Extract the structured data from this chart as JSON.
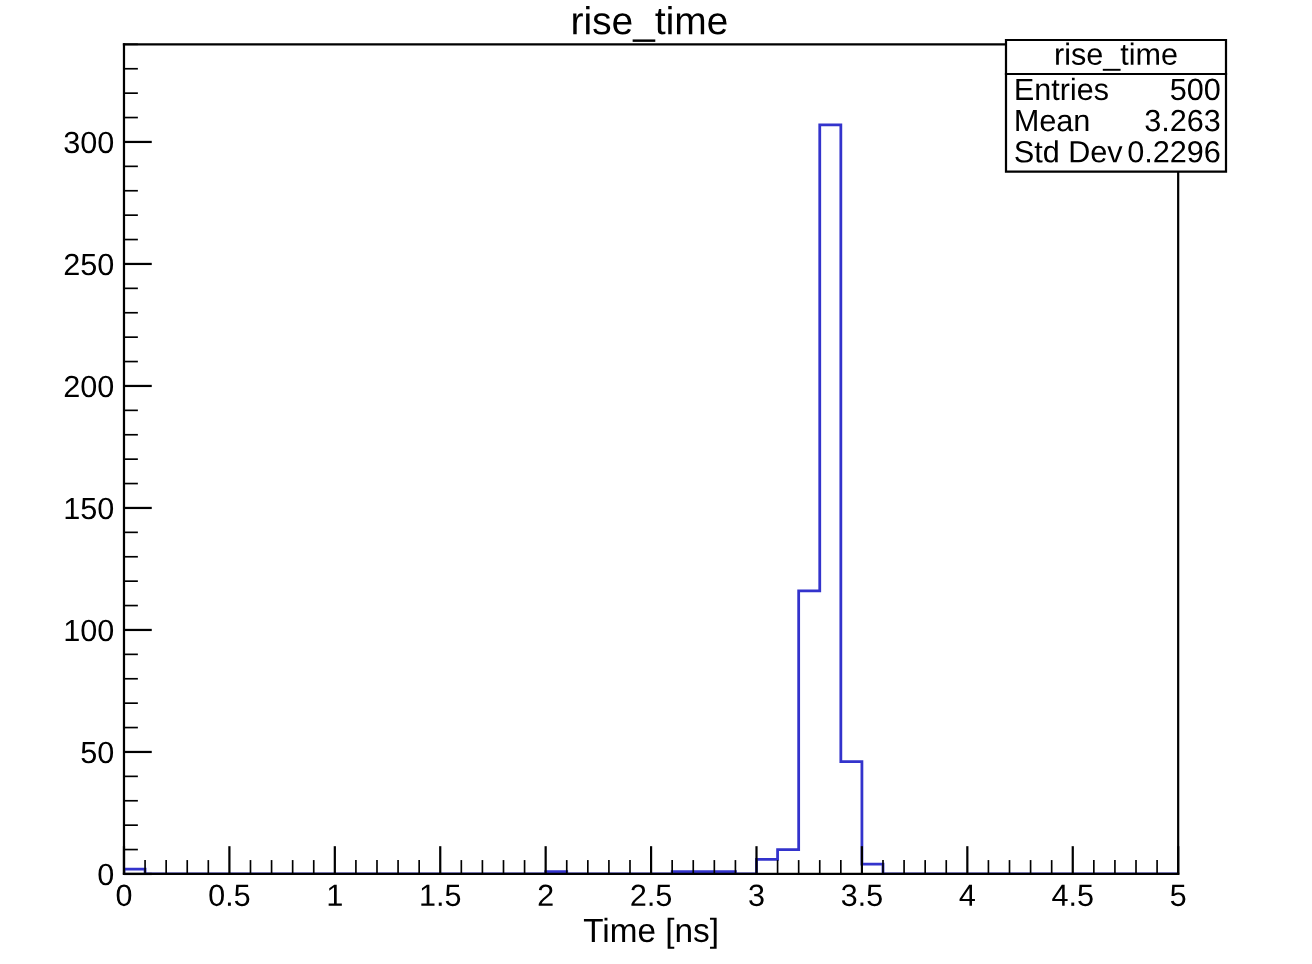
{
  "chart_data": {
    "type": "histogram",
    "title": "rise_time",
    "xlabel": "Time [ns]",
    "bins": [
      0,
      0.1,
      0.2,
      0.3,
      0.4,
      0.5,
      0.6,
      0.7,
      0.8,
      0.9,
      1,
      1.1,
      1.2,
      1.3,
      1.4,
      1.5,
      1.6,
      1.7,
      1.8,
      1.9,
      2,
      2.1,
      2.2,
      2.3,
      2.4,
      2.5,
      2.6,
      2.7,
      2.8,
      2.9,
      3,
      3.1,
      3.2,
      3.3,
      3.4,
      3.5,
      3.6,
      3.7,
      3.8,
      3.9,
      4,
      4.1,
      4.2,
      4.3,
      4.4,
      4.5,
      4.6,
      4.7,
      4.8,
      4.9,
      5
    ],
    "values": [
      2,
      0,
      0,
      0,
      0,
      0,
      0,
      0,
      0,
      0,
      0,
      0,
      0,
      0,
      0,
      0,
      0,
      0,
      0,
      0,
      1,
      0,
      0,
      0,
      0,
      0,
      1,
      1,
      1,
      0,
      6,
      10,
      116,
      307,
      46,
      4,
      0,
      0,
      0,
      0,
      0,
      0,
      0,
      0,
      0,
      0,
      0,
      0,
      0,
      0
    ],
    "color": "#3333cc",
    "xlim": [
      0,
      5
    ],
    "xticks": [
      0,
      0.5,
      1,
      1.5,
      2,
      2.5,
      3,
      3.5,
      4,
      4.5,
      5
    ],
    "ylim": [
      0,
      340
    ],
    "yticks": [
      0,
      50,
      100,
      150,
      200,
      250,
      300
    ],
    "grid": false,
    "annotations": [
      "rise_time",
      "Entries",
      "500",
      "Mean",
      "3.263",
      "Std Dev",
      "0.2296"
    ]
  }
}
